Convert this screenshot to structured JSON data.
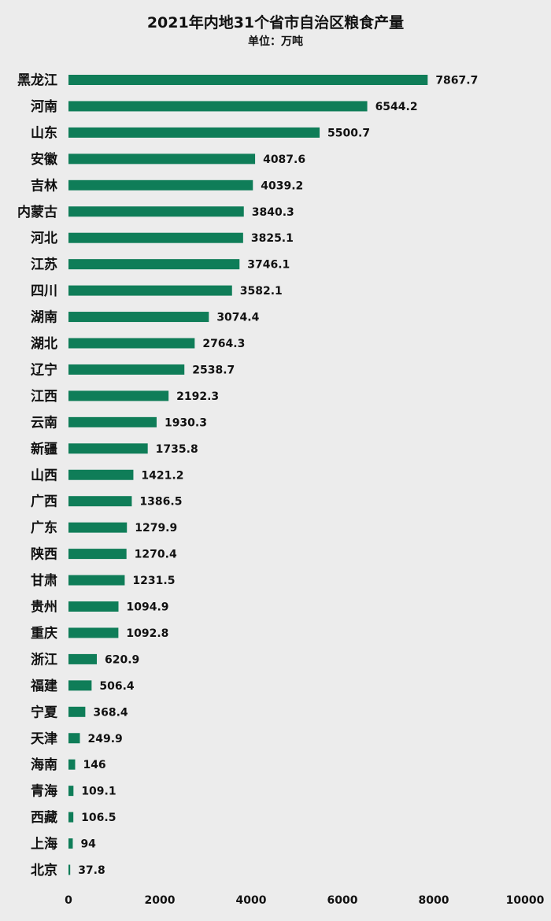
{
  "chart_data": {
    "type": "bar",
    "orientation": "horizontal",
    "title": "2021年内地31个省市自治区粮食产量",
    "subtitle": "单位：万吨",
    "categories": [
      "黑龙江",
      "河南",
      "山东",
      "安徽",
      "吉林",
      "内蒙古",
      "河北",
      "江苏",
      "四川",
      "湖南",
      "湖北",
      "辽宁",
      "江西",
      "云南",
      "新疆",
      "山西",
      "广西",
      "广东",
      "陕西",
      "甘肃",
      "贵州",
      "重庆",
      "浙江",
      "福建",
      "宁夏",
      "天津",
      "海南",
      "青海",
      "西藏",
      "上海",
      "北京"
    ],
    "values": [
      7867.7,
      6544.2,
      5500.7,
      4087.6,
      4039.2,
      3840.3,
      3825.1,
      3746.1,
      3582.1,
      3074.4,
      2764.3,
      2538.7,
      2192.3,
      1930.3,
      1735.8,
      1421.2,
      1386.5,
      1279.9,
      1270.4,
      1231.5,
      1094.9,
      1092.8,
      620.9,
      506.4,
      368.4,
      249.9,
      146,
      109.1,
      106.5,
      94,
      37.8
    ],
    "value_labels": [
      "7867.7",
      "6544.2",
      "5500.7",
      "4087.6",
      "4039.2",
      "3840.3",
      "3825.1",
      "3746.1",
      "3582.1",
      "3074.4",
      "2764.3",
      "2538.7",
      "2192.3",
      "1930.3",
      "1735.8",
      "1421.2",
      "1386.5",
      "1279.9",
      "1270.4",
      "1231.5",
      "1094.9",
      "1092.8",
      "620.9",
      "506.4",
      "368.4",
      "249.9",
      "146",
      "109.1",
      "106.5",
      "94",
      "37.8"
    ],
    "xlim": [
      0,
      10000
    ],
    "x_ticks": [
      "0",
      "2000",
      "4000",
      "6000",
      "8000",
      "10000"
    ],
    "grid": false,
    "legend": "none",
    "bar_color": "#0f7d58",
    "label_color": "#111111",
    "background_color": "#ececec"
  }
}
